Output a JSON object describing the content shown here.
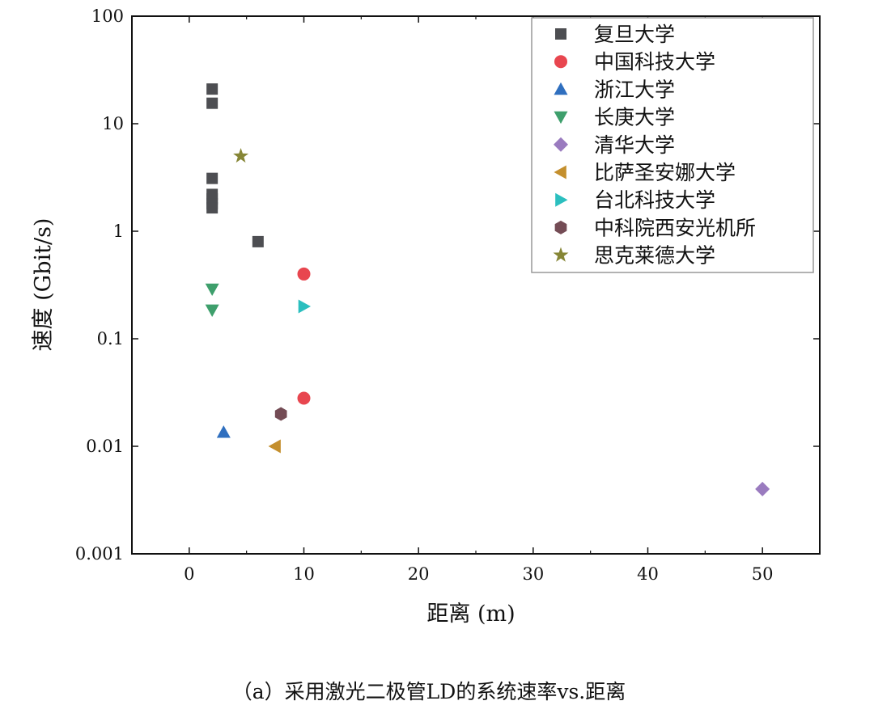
{
  "chart_data": {
    "type": "scatter",
    "title": "",
    "caption": "（a）采用激光二极管LD的系统速率vs.距离",
    "xlabel": "距离 (m)",
    "ylabel": "速度 (Gbit/s)",
    "xlim": [
      -5,
      55
    ],
    "ylim": [
      0.001,
      100
    ],
    "yscale": "log",
    "xticks": [
      0,
      10,
      20,
      30,
      40,
      50
    ],
    "xtick_labels": [
      "0",
      "10",
      "20",
      "30",
      "40",
      "50"
    ],
    "yticks": [
      0.001,
      0.01,
      0.1,
      1,
      10,
      100
    ],
    "ytick_labels": [
      "0.001",
      "0.01",
      "0.1",
      "1",
      "10",
      "100"
    ],
    "grid": false,
    "legend_position": "top-right",
    "series": [
      {
        "name": "复旦大学",
        "marker": "square",
        "color": "#4d4e52",
        "points": [
          [
            2,
            21
          ],
          [
            2,
            15.5
          ],
          [
            2,
            3.1
          ],
          [
            2,
            2.2
          ],
          [
            2,
            2.0
          ],
          [
            2,
            1.8
          ],
          [
            2,
            1.65
          ],
          [
            6,
            0.8
          ]
        ]
      },
      {
        "name": "中国科技大学",
        "marker": "circle",
        "color": "#e8464f",
        "points": [
          [
            10,
            0.4
          ],
          [
            10,
            0.028
          ]
        ]
      },
      {
        "name": "浙江大学",
        "marker": "triangle-up",
        "color": "#2f6fbf",
        "points": [
          [
            3,
            0.0135
          ]
        ]
      },
      {
        "name": "长庚大学",
        "marker": "triangle-down",
        "color": "#3e9f6c",
        "points": [
          [
            2,
            0.29
          ],
          [
            2,
            0.185
          ]
        ]
      },
      {
        "name": "清华大学",
        "marker": "diamond",
        "color": "#9a7bbf",
        "points": [
          [
            50,
            0.004
          ]
        ]
      },
      {
        "name": "比萨圣安娜大学",
        "marker": "triangle-left",
        "color": "#c48f2d",
        "points": [
          [
            7.5,
            0.01
          ]
        ]
      },
      {
        "name": "台北科技大学",
        "marker": "triangle-right",
        "color": "#2bbfbf",
        "points": [
          [
            10,
            0.2
          ]
        ]
      },
      {
        "name": "中科院西安光机所",
        "marker": "hexagon",
        "color": "#744c55",
        "points": [
          [
            8,
            0.02
          ]
        ]
      },
      {
        "name": "思克莱德大学",
        "marker": "star",
        "color": "#868636",
        "points": [
          [
            4.5,
            5
          ]
        ]
      }
    ]
  }
}
